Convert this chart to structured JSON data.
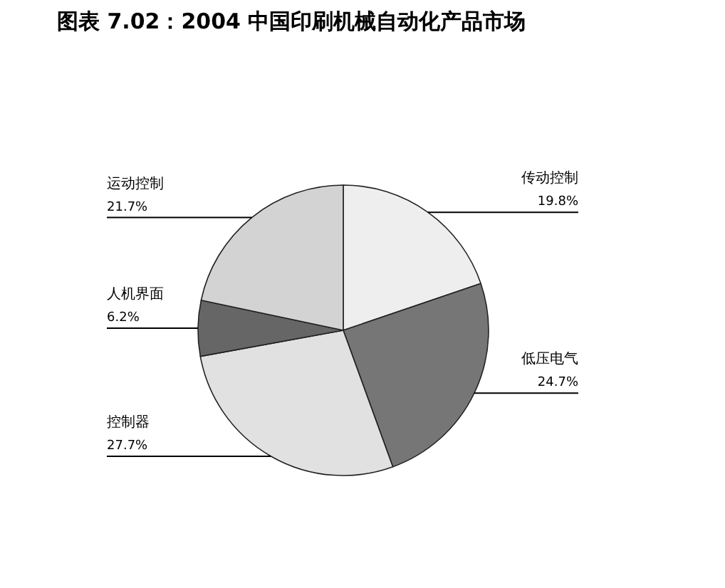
{
  "chart_data": {
    "type": "pie",
    "title": "图表 7.02：2004 中国印刷机械自动化产品市场",
    "categories": [
      "传动控制",
      "低压电气",
      "控制器",
      "人机界面",
      "运动控制"
    ],
    "values": [
      19.8,
      24.7,
      27.7,
      6.2,
      21.7
    ],
    "value_labels": [
      "19.8%",
      "24.7%",
      "27.7%",
      "6.2%",
      "21.7%"
    ],
    "colors": [
      "#eeeeee",
      "#767676",
      "#e1e1e1",
      "#666666",
      "#d3d3d3"
    ]
  }
}
